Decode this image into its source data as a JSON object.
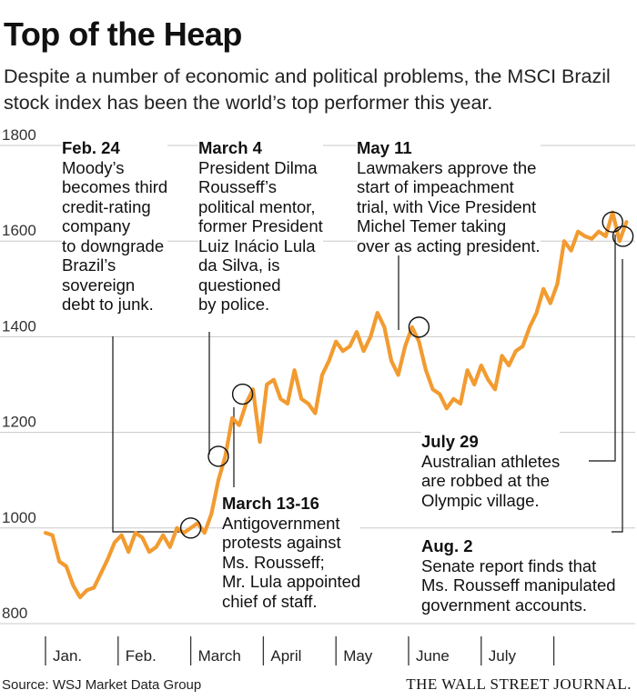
{
  "header": {
    "title": "Top of the Heap",
    "subtitle": "Despite a number of economic and political problems, the MSCI Brazil stock index has been the world’s top performer this year."
  },
  "colors": {
    "line": "#f29b30",
    "grid": "#c8c8c8",
    "text": "#111111",
    "axis": "#333333"
  },
  "chart_data": {
    "type": "line",
    "title": "Top of the Heap",
    "series_name": "MSCI Brazil stock index",
    "ylim": [
      800,
      1800
    ],
    "yticks": [
      800,
      1000,
      1200,
      1400,
      1600,
      1800
    ],
    "months": [
      "Jan.",
      "Feb.",
      "March",
      "April",
      "May",
      "June",
      "July"
    ],
    "x_unit": "trading day index from Jan. 1 (~21 per month)",
    "values": [
      [
        0,
        990
      ],
      [
        2,
        985
      ],
      [
        4,
        930
      ],
      [
        6,
        920
      ],
      [
        8,
        880
      ],
      [
        10,
        855
      ],
      [
        12,
        870
      ],
      [
        14,
        875
      ],
      [
        16,
        905
      ],
      [
        18,
        935
      ],
      [
        20,
        970
      ],
      [
        22,
        985
      ],
      [
        24,
        950
      ],
      [
        26,
        990
      ],
      [
        28,
        980
      ],
      [
        30,
        950
      ],
      [
        32,
        960
      ],
      [
        34,
        985
      ],
      [
        36,
        960
      ],
      [
        38,
        1000
      ],
      [
        40,
        990
      ],
      [
        42,
        1000
      ],
      [
        44,
        1010
      ],
      [
        46,
        990
      ],
      [
        48,
        1030
      ],
      [
        50,
        1100
      ],
      [
        52,
        1150
      ],
      [
        54,
        1230
      ],
      [
        56,
        1215
      ],
      [
        58,
        1260
      ],
      [
        60,
        1290
      ],
      [
        62,
        1180
      ],
      [
        64,
        1300
      ],
      [
        66,
        1310
      ],
      [
        68,
        1270
      ],
      [
        70,
        1260
      ],
      [
        72,
        1330
      ],
      [
        74,
        1270
      ],
      [
        76,
        1260
      ],
      [
        78,
        1240
      ],
      [
        80,
        1320
      ],
      [
        82,
        1350
      ],
      [
        84,
        1390
      ],
      [
        86,
        1370
      ],
      [
        88,
        1380
      ],
      [
        90,
        1410
      ],
      [
        92,
        1370
      ],
      [
        94,
        1400
      ],
      [
        96,
        1450
      ],
      [
        98,
        1420
      ],
      [
        100,
        1350
      ],
      [
        102,
        1320
      ],
      [
        104,
        1380
      ],
      [
        106,
        1420
      ],
      [
        108,
        1390
      ],
      [
        110,
        1330
      ],
      [
        112,
        1290
      ],
      [
        114,
        1280
      ],
      [
        116,
        1250
      ],
      [
        118,
        1270
      ],
      [
        120,
        1260
      ],
      [
        122,
        1330
      ],
      [
        124,
        1300
      ],
      [
        126,
        1340
      ],
      [
        128,
        1310
      ],
      [
        130,
        1290
      ],
      [
        132,
        1360
      ],
      [
        134,
        1340
      ],
      [
        136,
        1370
      ],
      [
        138,
        1380
      ],
      [
        140,
        1420
      ],
      [
        142,
        1450
      ],
      [
        144,
        1500
      ],
      [
        146,
        1470
      ],
      [
        148,
        1510
      ],
      [
        150,
        1600
      ],
      [
        152,
        1580
      ],
      [
        154,
        1620
      ],
      [
        156,
        1610
      ],
      [
        158,
        1605
      ],
      [
        160,
        1620
      ],
      [
        162,
        1610
      ],
      [
        164,
        1660
      ],
      [
        166,
        1600
      ],
      [
        168,
        1640
      ]
    ],
    "annotations": [
      {
        "date": "Feb. 24",
        "lines": [
          "Moody’s",
          "becomes third",
          "credit-rating",
          "company",
          "to downgrade",
          "Brazil’s",
          "sovereign",
          "debt to junk."
        ],
        "marker": [
          42,
          1000
        ]
      },
      {
        "date": "March 4",
        "lines": [
          "President Dilma",
          "Rousseff’s",
          "political mentor,",
          "former President",
          "Luiz Inácio Lula",
          "da Silva, is",
          "questioned",
          "by police."
        ],
        "marker": [
          50,
          1150
        ]
      },
      {
        "date": "March 13-16",
        "lines": [
          "Antigovernment",
          "protests against",
          "Ms. Rousseff;",
          "Mr. Lula appointed",
          "chief of staff."
        ],
        "marker": [
          57,
          1280
        ]
      },
      {
        "date": "May 11",
        "lines": [
          "Lawmakers approve the",
          "start of impeachment",
          "trial, with Vice President",
          "Michel Temer taking",
          "over as acting president."
        ],
        "marker": [
          108,
          1420
        ]
      },
      {
        "date": "July 29",
        "lines": [
          "Australian athletes",
          "are robbed at the",
          "Olympic village."
        ],
        "marker": [
          164,
          1640
        ]
      },
      {
        "date": "Aug. 2",
        "lines": [
          "Senate report finds that",
          "Ms. Rousseff manipulated",
          "government accounts."
        ],
        "marker": [
          167,
          1610
        ]
      }
    ]
  },
  "footer": {
    "source": "Source: WSJ Market Data Group",
    "brand": "THE WALL STREET JOURNAL."
  }
}
